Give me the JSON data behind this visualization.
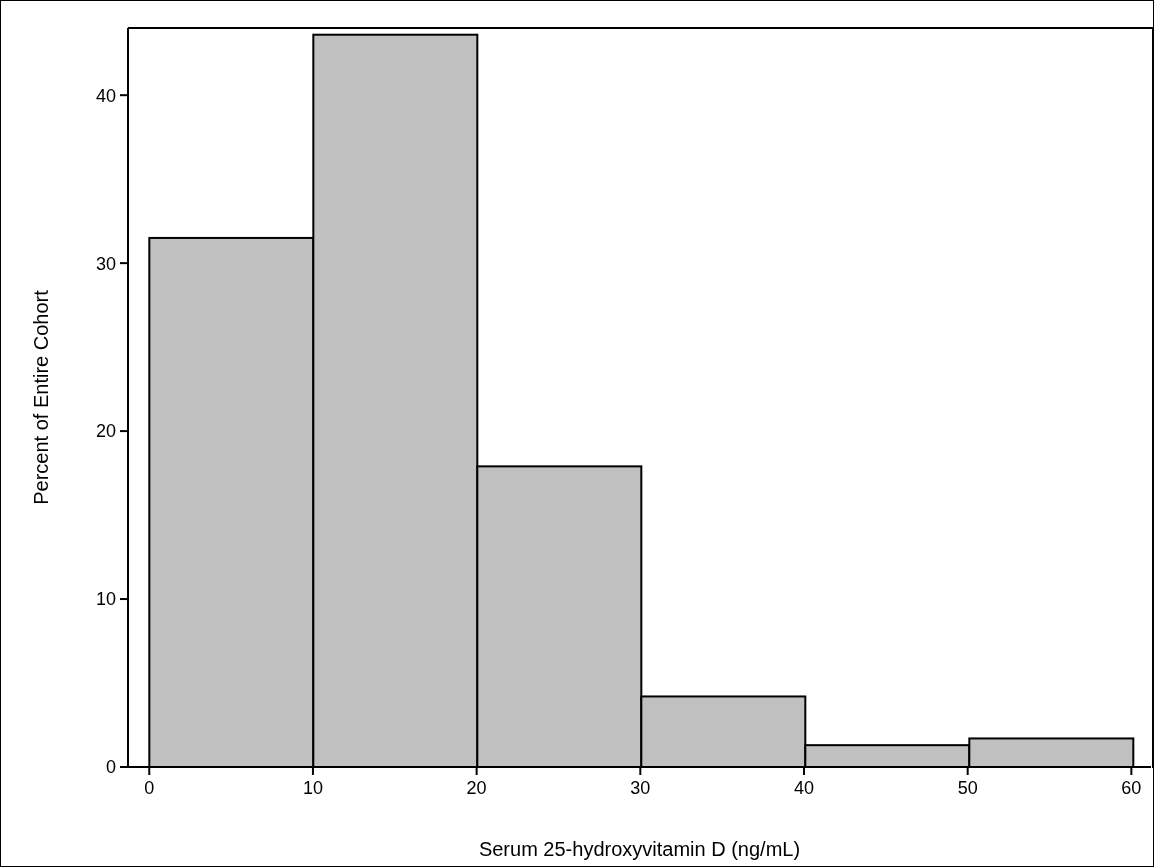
{
  "chart_data": {
    "type": "histogram",
    "xlabel": "Serum 25-hydroxyvitamin D (ng/mL)",
    "ylabel": "Percent of Entire Cohort",
    "bins": [
      0,
      10,
      20,
      30,
      40,
      50,
      60
    ],
    "values": [
      31.5,
      43.6,
      17.9,
      4.2,
      1.3,
      1.7
    ],
    "color": "#c0c0c0",
    "xlim": [
      -1.3,
      61.2
    ],
    "xticks": [
      0,
      10,
      20,
      30,
      40,
      50,
      60
    ],
    "ylim": [
      0,
      44
    ],
    "yticks": [
      0,
      10,
      20,
      30,
      40
    ],
    "grid": false
  }
}
